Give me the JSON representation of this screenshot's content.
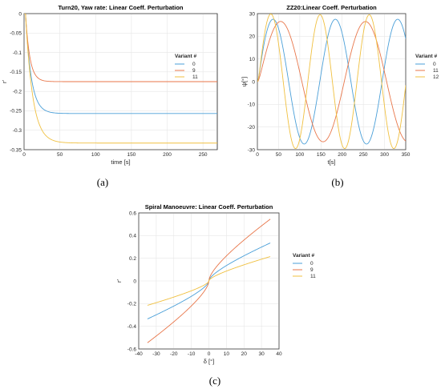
{
  "chart_data": [
    {
      "type": "line",
      "title": "Turn20, Yaw rate: Linear Coeff. Perturbation",
      "xlabel": "time [s]",
      "ylabel": "r′",
      "xlim": [
        0,
        270
      ],
      "ylim": [
        -0.35,
        0
      ],
      "xticks": [
        "0",
        "50",
        "100",
        "150",
        "200",
        "250"
      ],
      "yticks": [
        "0",
        "-0.05",
        "-0.1",
        "-0.15",
        "-0.2",
        "-0.25",
        "-0.3",
        "-0.35"
      ],
      "grid": true,
      "legend_title": "Variant #",
      "legend_position": "right",
      "series": [
        {
          "name": "0",
          "color": "#4a9fd8",
          "kind": "step",
          "final": -0.257,
          "tau": 8,
          "delay": 2
        },
        {
          "name": "9",
          "color": "#e8764a",
          "kind": "step",
          "final": -0.175,
          "tau": 6,
          "delay": 2
        },
        {
          "name": "11",
          "color": "#f0c040",
          "kind": "step",
          "final": -0.333,
          "tau": 10,
          "delay": 2
        }
      ],
      "caption": "(a)"
    },
    {
      "type": "line",
      "title": "ZZ20:Linear Coeff. Perturbation",
      "xlabel": "t[s]",
      "ylabel": "ψ[°]",
      "xlim": [
        0,
        350
      ],
      "ylim": [
        -30,
        30
      ],
      "xticks": [
        "0",
        "50",
        "100",
        "150",
        "200",
        "250",
        "300",
        "350"
      ],
      "yticks": [
        "30",
        "20",
        "10",
        "0",
        "-10",
        "-20",
        "-30"
      ],
      "grid": true,
      "legend_title": "Variant #",
      "legend_position": "right",
      "series": [
        {
          "name": "0",
          "color": "#4a9fd8",
          "kind": "zigzag",
          "amp": 27.5,
          "period": 147,
          "t_peak": 37
        },
        {
          "name": "11",
          "color": "#e8764a",
          "kind": "zigzag",
          "amp": 26.5,
          "period": 200,
          "t_peak": 55
        },
        {
          "name": "12",
          "color": "#f0c040",
          "kind": "zigzag",
          "amp": 29.5,
          "period": 116,
          "t_peak": 32
        }
      ],
      "caption": "(b)"
    },
    {
      "type": "line",
      "title": "Spiral Manoeuvre: Linear Coeff. Perturbation",
      "xlabel": "δ [°]",
      "ylabel": "r′",
      "xlim": [
        -40,
        40
      ],
      "ylim": [
        -0.6,
        0.6
      ],
      "xticks": [
        "-40",
        "-30",
        "-20",
        "-10",
        "0",
        "10",
        "20",
        "30",
        "40"
      ],
      "yticks": [
        "0.6",
        "0.4",
        "0.2",
        "0",
        "-0.2",
        "-0.4",
        "-0.6"
      ],
      "grid": true,
      "legend_title": "Variant #",
      "legend_position": "right",
      "series": [
        {
          "name": "0",
          "color": "#4a9fd8",
          "kind": "spiral",
          "endpoint": 0.335,
          "range": 35
        },
        {
          "name": "9",
          "color": "#e8764a",
          "kind": "spiral",
          "endpoint": 0.545,
          "range": 35
        },
        {
          "name": "11",
          "color": "#f0c040",
          "kind": "spiral",
          "endpoint": 0.215,
          "range": 35
        }
      ],
      "caption": "(c)"
    }
  ]
}
